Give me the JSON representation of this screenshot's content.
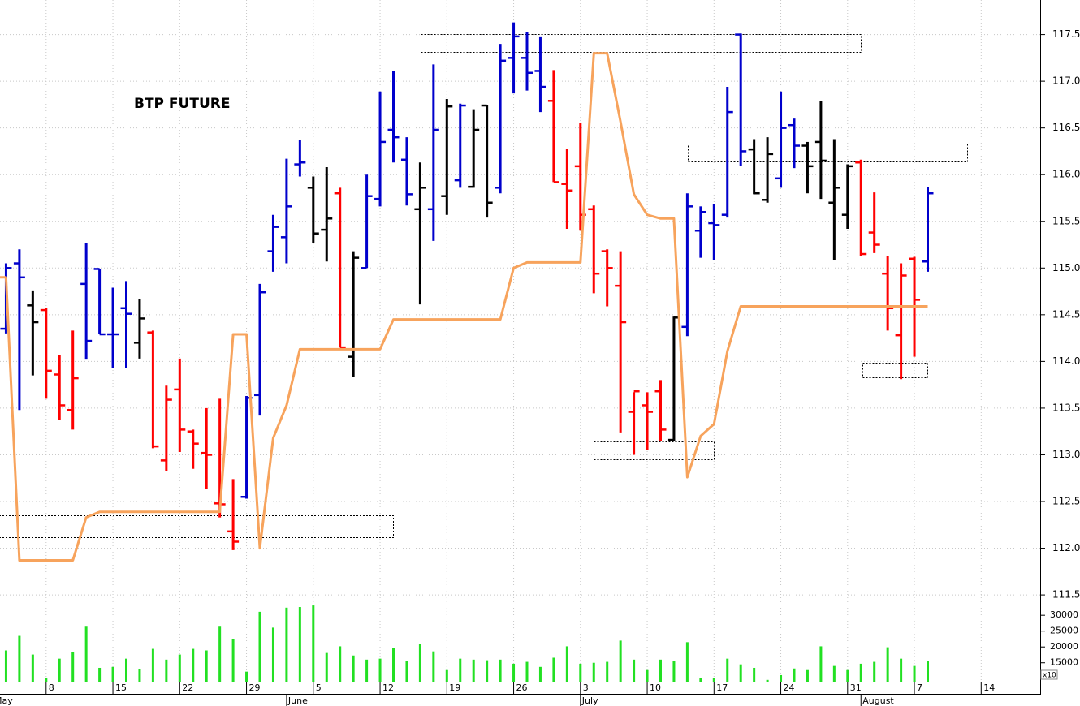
{
  "chart_data": {
    "type": "ohlc",
    "title": "BTP FUTURE",
    "categories": [
      null,
      null,
      null,
      null,
      "8",
      null,
      null,
      null,
      null,
      "15",
      null,
      null,
      null,
      null,
      "22",
      null,
      null,
      null,
      null,
      "29",
      null,
      null,
      null,
      null,
      "5",
      null,
      null,
      null,
      null,
      "12",
      null,
      null,
      null,
      null,
      "19",
      null,
      null,
      null,
      null,
      "26",
      null,
      null,
      null,
      null,
      "3",
      null,
      null,
      null,
      null,
      "10",
      null,
      null,
      null,
      null,
      "17",
      null,
      null,
      null,
      null,
      "24",
      null,
      null,
      null,
      null,
      "31",
      null,
      null,
      null,
      null,
      "7",
      null,
      null,
      null,
      null,
      "14"
    ],
    "month_labels": [
      "May",
      null,
      null,
      null,
      null,
      null,
      null,
      null,
      null,
      null,
      null,
      null,
      null,
      null,
      null,
      null,
      null,
      null,
      null,
      null,
      null,
      null,
      "June",
      null,
      null,
      null,
      null,
      null,
      null,
      null,
      null,
      null,
      null,
      null,
      null,
      null,
      null,
      null,
      null,
      null,
      null,
      null,
      null,
      null,
      "July",
      null,
      null,
      null,
      null,
      null,
      null,
      null,
      null,
      null,
      null,
      null,
      null,
      null,
      null,
      null,
      null,
      null,
      null,
      null,
      null,
      "August",
      null,
      null,
      null,
      null,
      null,
      null,
      null,
      null,
      null
    ],
    "open": [
      null,
      114.35,
      115.05,
      114.6,
      114.55,
      113.86,
      113.48,
      114.83,
      114.99,
      114.29,
      114.57,
      114.2,
      114.31,
      112.94,
      113.7,
      113.25,
      113.02,
      112.48,
      112.18,
      112.55,
      113.64,
      115.18,
      115.33,
      116.11,
      115.86,
      115.41,
      115.8,
      114.05,
      115.0,
      115.74,
      116.48,
      116.16,
      115.63,
      115.63,
      115.77,
      115.94,
      115.87,
      116.74,
      115.86,
      117.25,
      117.25,
      117.11,
      116.79,
      115.9,
      116.09,
      115.63,
      115.18,
      114.81,
      113.46,
      113.53,
      113.68,
      113.16,
      114.37,
      115.4,
      115.48,
      115.57,
      117.5,
      116.27,
      115.73,
      115.96,
      116.53,
      116.31,
      116.35,
      115.7,
      115.57,
      116.13,
      115.38,
      114.94,
      114.28,
      115.1,
      115.07,
      null,
      null,
      null,
      null
    ],
    "high": [
      null,
      115.05,
      115.2,
      114.76,
      114.57,
      114.07,
      114.33,
      115.27,
      114.99,
      114.79,
      114.86,
      114.67,
      114.33,
      113.74,
      114.03,
      113.27,
      113.5,
      113.6,
      112.74,
      113.63,
      114.83,
      115.57,
      116.17,
      116.37,
      115.98,
      116.08,
      115.86,
      115.18,
      116.0,
      116.89,
      117.11,
      116.4,
      116.13,
      117.18,
      116.81,
      116.76,
      116.7,
      116.74,
      117.4,
      117.63,
      117.53,
      117.48,
      117.12,
      116.28,
      116.55,
      115.67,
      115.2,
      115.18,
      113.67,
      113.67,
      113.8,
      114.48,
      115.8,
      115.66,
      115.68,
      116.94,
      117.51,
      116.38,
      116.4,
      116.89,
      116.6,
      116.35,
      116.79,
      116.38,
      116.11,
      116.16,
      115.81,
      115.13,
      115.05,
      115.12,
      115.87,
      null,
      null,
      null,
      null
    ],
    "low": [
      null,
      114.3,
      113.48,
      113.85,
      113.6,
      113.37,
      113.27,
      114.02,
      114.29,
      113.93,
      113.93,
      114.03,
      113.07,
      112.83,
      113.03,
      112.85,
      112.63,
      112.33,
      111.98,
      112.53,
      113.42,
      114.96,
      115.05,
      115.98,
      115.27,
      115.07,
      114.15,
      113.83,
      115.0,
      115.66,
      116.13,
      115.67,
      114.61,
      115.29,
      115.57,
      115.86,
      115.86,
      115.54,
      115.8,
      116.87,
      116.9,
      116.67,
      115.92,
      115.42,
      115.4,
      114.73,
      114.59,
      113.24,
      113.0,
      113.05,
      113.15,
      113.15,
      114.27,
      115.11,
      115.09,
      115.54,
      116.09,
      115.79,
      115.7,
      115.86,
      116.07,
      115.8,
      115.74,
      115.09,
      115.42,
      115.13,
      115.16,
      114.33,
      113.81,
      114.05,
      114.96,
      null,
      null,
      null,
      null
    ],
    "close": [
      null,
      115.0,
      114.9,
      114.42,
      113.9,
      113.53,
      113.82,
      114.22,
      114.29,
      114.29,
      114.51,
      114.46,
      113.09,
      113.59,
      113.27,
      113.12,
      113.0,
      112.47,
      112.07,
      113.61,
      114.74,
      115.44,
      115.66,
      116.13,
      115.37,
      115.53,
      114.15,
      115.11,
      115.77,
      116.35,
      116.4,
      115.79,
      115.86,
      116.48,
      116.73,
      116.74,
      116.48,
      115.7,
      117.22,
      117.48,
      117.09,
      116.94,
      115.92,
      115.83,
      115.57,
      114.94,
      115.0,
      114.42,
      113.68,
      113.46,
      113.27,
      114.47,
      115.66,
      115.6,
      115.46,
      116.67,
      116.25,
      115.8,
      116.22,
      116.5,
      116.31,
      116.09,
      116.15,
      115.86,
      116.09,
      115.15,
      115.25,
      114.57,
      114.92,
      114.66,
      115.8,
      null,
      null,
      null,
      null
    ],
    "bar_colors": [
      null,
      "#0000cc",
      "#0000cc",
      "#000000",
      "#ff0000",
      "#ff0000",
      "#ff0000",
      "#0000cc",
      "#0000cc",
      "#0000cc",
      "#0000cc",
      "#000000",
      "#ff0000",
      "#ff0000",
      "#ff0000",
      "#ff0000",
      "#ff0000",
      "#ff0000",
      "#ff0000",
      "#0000cc",
      "#0000cc",
      "#0000cc",
      "#0000cc",
      "#0000cc",
      "#000000",
      "#000000",
      "#ff0000",
      "#000000",
      "#0000cc",
      "#0000cc",
      "#0000cc",
      "#0000cc",
      "#000000",
      "#0000cc",
      "#000000",
      "#0000cc",
      "#000000",
      "#000000",
      "#0000cc",
      "#0000cc",
      "#0000cc",
      "#0000cc",
      "#ff0000",
      "#ff0000",
      "#ff0000",
      "#ff0000",
      "#ff0000",
      "#ff0000",
      "#ff0000",
      "#ff0000",
      "#ff0000",
      "#000000",
      "#0000cc",
      "#0000cc",
      "#0000cc",
      "#0000cc",
      "#0000cc",
      "#000000",
      "#000000",
      "#0000cc",
      "#0000cc",
      "#000000",
      "#000000",
      "#000000",
      "#000000",
      "#ff0000",
      "#ff0000",
      "#ff0000",
      "#ff0000",
      "#ff0000",
      "#0000cc",
      null,
      null,
      null,
      null
    ],
    "overlay": {
      "color": "#f7a35c",
      "values": [
        114.9,
        114.9,
        111.87,
        111.87,
        111.87,
        111.87,
        111.87,
        112.33,
        112.39,
        112.39,
        112.39,
        112.39,
        112.39,
        112.39,
        112.39,
        112.39,
        112.39,
        112.39,
        114.29,
        114.29,
        112.0,
        113.18,
        113.53,
        114.13,
        114.13,
        114.13,
        114.13,
        114.13,
        114.13,
        114.13,
        114.45,
        114.45,
        114.45,
        114.45,
        114.45,
        114.45,
        114.45,
        114.45,
        114.45,
        115.0,
        115.06,
        115.06,
        115.06,
        115.06,
        115.06,
        117.3,
        117.3,
        116.57,
        115.79,
        115.57,
        115.53,
        115.53,
        112.76,
        113.2,
        113.33,
        114.11,
        114.59,
        114.59,
        114.59,
        114.59,
        114.59,
        114.59,
        114.59,
        114.59,
        114.59,
        114.59,
        114.59,
        114.59,
        114.59,
        114.59,
        114.59,
        null,
        null,
        null,
        null
      ]
    },
    "ylim": [
      111.44,
      117.87
    ],
    "yticks": [
      111.5,
      {
        "value": 112,
        "label": "112.0"
      },
      112.5,
      {
        "value": 113,
        "label": "113.0"
      },
      113.5,
      {
        "value": 114,
        "label": "114.0"
      },
      114.5,
      {
        "value": 115,
        "label": "115.0"
      },
      115.5,
      {
        "value": 116,
        "label": "116.0"
      },
      116.5,
      {
        "value": 117,
        "label": "117.0"
      },
      117.5
    ],
    "grid": true,
    "volume": {
      "color": "#22e022",
      "unit_label": "x10",
      "values": [
        null,
        18900,
        23500,
        17600,
        10300,
        16300,
        18400,
        26400,
        13400,
        13700,
        16300,
        12900,
        19400,
        16000,
        17600,
        19400,
        18900,
        26400,
        22500,
        12200,
        31100,
        26100,
        32400,
        32600,
        33100,
        18100,
        20200,
        17300,
        16000,
        16300,
        19700,
        15500,
        21000,
        18600,
        12700,
        16300,
        16000,
        15800,
        16000,
        14700,
        15300,
        13700,
        16600,
        20200,
        14700,
        15000,
        15300,
        22000,
        16000,
        12700,
        16000,
        15500,
        21500,
        10100,
        10100,
        16300,
        14500,
        13400,
        9600,
        11100,
        13200,
        12700,
        20200,
        14000,
        12700,
        14700,
        15300,
        19900,
        16300,
        14000,
        15500,
        null,
        null,
        null,
        null
      ],
      "ylim": [
        9040,
        34400
      ],
      "yticks": [
        15000,
        20000,
        25000,
        30000
      ]
    }
  }
}
